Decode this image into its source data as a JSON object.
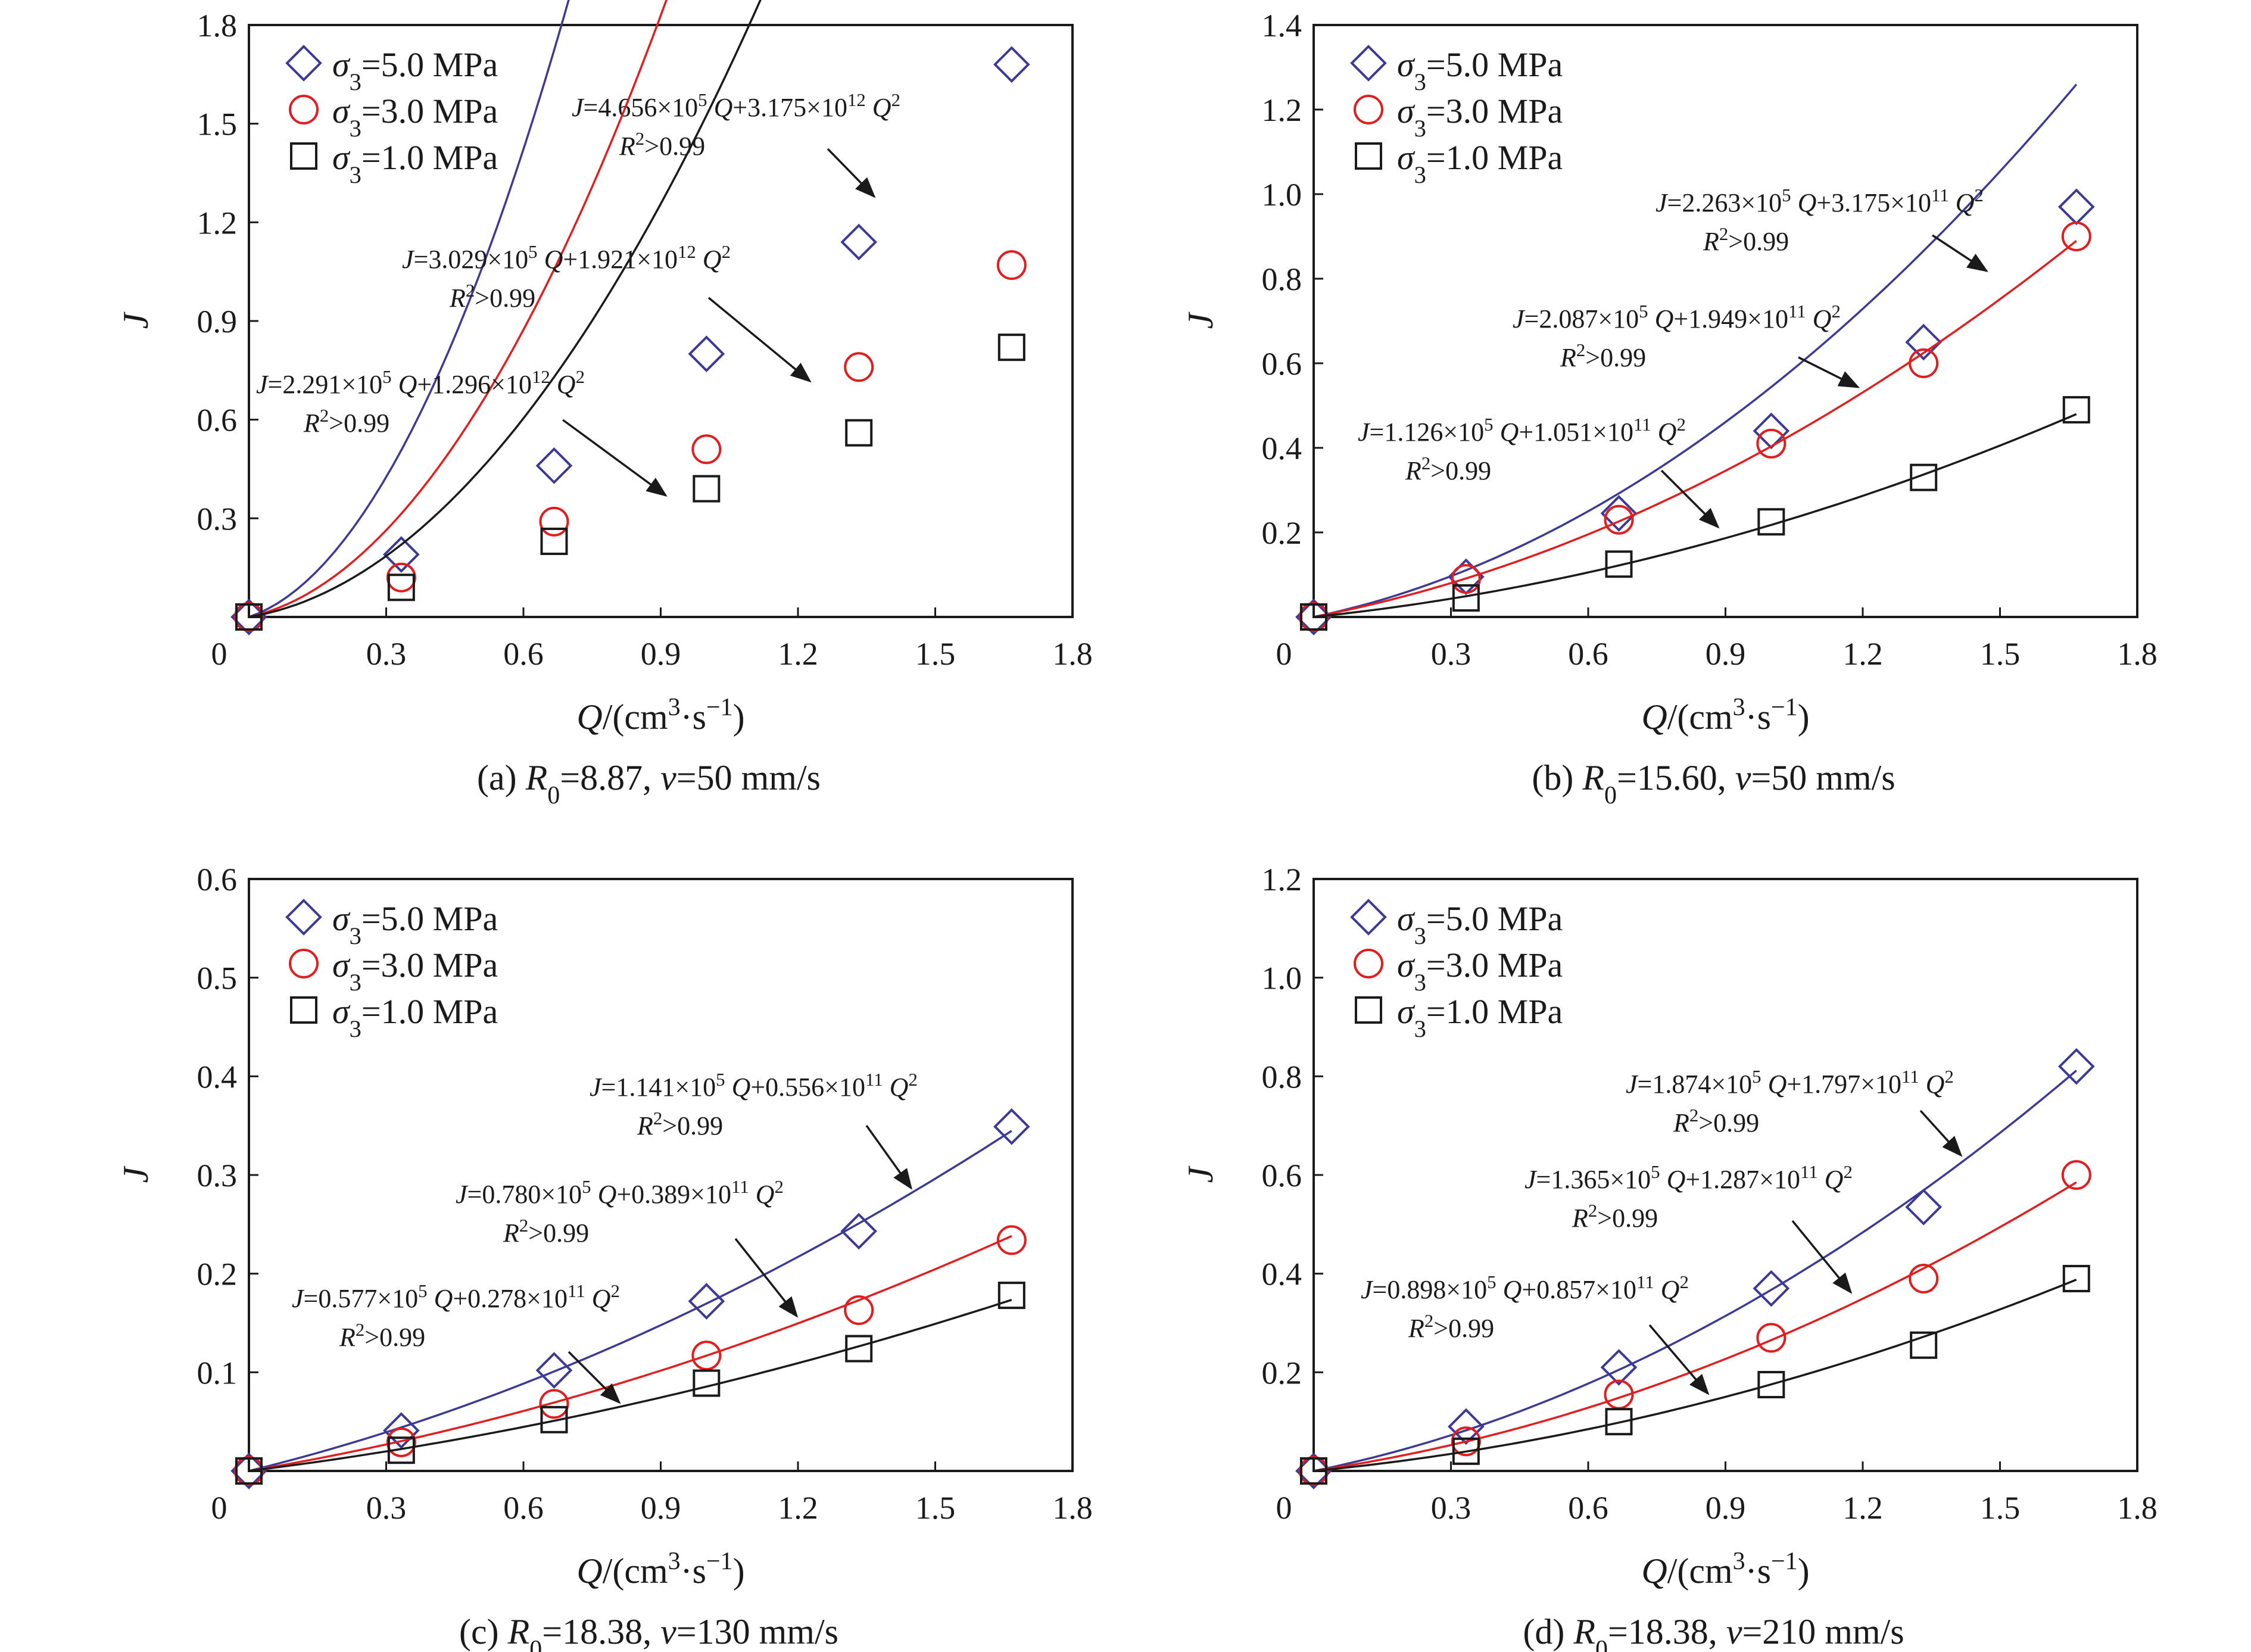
{
  "colors": {
    "s50": "#3d3a97",
    "s30": "#e31d1d",
    "s10": "#1a1a1a",
    "axis": "#1a1a1a"
  },
  "chart_data": [
    {
      "type": "scatter",
      "caption": "(a) R0=8.87, v=50 mm/s",
      "xlabel": "Q/(cm³·s⁻¹)",
      "ylabel": "J",
      "xlim": [
        0,
        1.8
      ],
      "ylim": [
        0,
        1.8
      ],
      "xticks": [
        "0",
        "0.3",
        "0.6",
        "0.9",
        "1.2",
        "1.5",
        "1.8"
      ],
      "yticks": [
        "0.3",
        "0.6",
        "0.9",
        "1.2",
        "1.5",
        "1.8"
      ],
      "legend_position": "top-left",
      "series": [
        {
          "name": "σ3=5.0 MPa",
          "marker": "diamond",
          "x": [
            0,
            0.333,
            0.667,
            1.0,
            1.333,
            1.667
          ],
          "values": [
            0,
            0.19,
            0.46,
            0.8,
            1.14,
            1.68
          ],
          "fit": [
            465600.0,
            3175000000000.0
          ],
          "equation": "J=4.656×10⁵ Q+3.175×10¹² Q²",
          "r2": "R²>0.99"
        },
        {
          "name": "σ3=3.0 MPa",
          "marker": "circle",
          "x": [
            0,
            0.333,
            0.667,
            1.0,
            1.333,
            1.667
          ],
          "values": [
            0,
            0.12,
            0.29,
            0.51,
            0.76,
            1.07
          ],
          "fit": [
            302900.0,
            1921000000000.0
          ],
          "equation": "J=3.029×10⁵ Q+1.921×10¹² Q²",
          "r2": "R²>0.99"
        },
        {
          "name": "σ3=1.0 MPa",
          "marker": "square",
          "x": [
            0,
            0.333,
            0.667,
            1.0,
            1.333,
            1.667
          ],
          "values": [
            0,
            0.09,
            0.23,
            0.39,
            0.56,
            0.82
          ],
          "fit": [
            229100.0,
            1296000000000.0
          ],
          "equation": "J=2.291×10⁵ Q+1.296×10¹² Q²",
          "r2": "R²>0.99"
        }
      ]
    },
    {
      "type": "scatter",
      "caption": "(b) R0=15.60, v=50 mm/s",
      "xlabel": "Q/(cm³·s⁻¹)",
      "ylabel": "J",
      "xlim": [
        0,
        1.8
      ],
      "ylim": [
        0,
        1.4
      ],
      "xticks": [
        "0",
        "0.3",
        "0.6",
        "0.9",
        "1.2",
        "1.5",
        "1.8"
      ],
      "yticks": [
        "0.2",
        "0.4",
        "0.6",
        "0.8",
        "1.0",
        "1.2",
        "1.4"
      ],
      "legend_position": "top-left",
      "series": [
        {
          "name": "σ3=5.0 MPa",
          "marker": "diamond",
          "x": [
            0,
            0.333,
            0.667,
            1.0,
            1.333,
            1.667
          ],
          "values": [
            0,
            0.095,
            0.245,
            0.44,
            0.65,
            0.97
          ],
          "fit": [
            226300.0,
            317500000000.0
          ],
          "equation": "J=2.263×10⁵ Q+3.175×10¹¹ Q²",
          "r2": "R²>0.99"
        },
        {
          "name": "σ3=3.0 MPa",
          "marker": "circle",
          "x": [
            0,
            0.333,
            0.667,
            1.0,
            1.333,
            1.667
          ],
          "values": [
            0,
            0.09,
            0.23,
            0.41,
            0.6,
            0.9
          ],
          "fit": [
            208700.0,
            194900000000.0
          ],
          "equation": "J=2.087×10⁵ Q+1.949×10¹¹ Q²",
          "r2": "R²>0.99"
        },
        {
          "name": "σ3=1.0 MPa",
          "marker": "square",
          "x": [
            0,
            0.333,
            0.667,
            1.0,
            1.333,
            1.667
          ],
          "values": [
            0,
            0.045,
            0.125,
            0.225,
            0.33,
            0.49
          ],
          "fit": [
            112600.0,
            105100000000.0
          ],
          "equation": "J=1.126×10⁵ Q+1.051×10¹¹ Q²",
          "r2": "R²>0.99"
        }
      ]
    },
    {
      "type": "scatter",
      "caption": "(c) R0=18.38, v=130 mm/s",
      "xlabel": "Q/(cm³·s⁻¹)",
      "ylabel": "J",
      "xlim": [
        0,
        1.8
      ],
      "ylim": [
        0,
        0.6
      ],
      "xticks": [
        "0",
        "0.3",
        "0.6",
        "0.9",
        "1.2",
        "1.5",
        "1.8"
      ],
      "yticks": [
        "0.1",
        "0.2",
        "0.3",
        "0.4",
        "0.5",
        "0.6"
      ],
      "legend_position": "top-left",
      "series": [
        {
          "name": "σ3=5.0 MPa",
          "marker": "diamond",
          "x": [
            0,
            0.333,
            0.667,
            1.0,
            1.333,
            1.667
          ],
          "values": [
            0,
            0.041,
            0.102,
            0.172,
            0.243,
            0.349
          ],
          "fit": [
            114100.0,
            55600000000.0
          ],
          "equation": "J=1.141×10⁵ Q+0.556×10¹¹ Q²",
          "r2": "R²>0.99"
        },
        {
          "name": "σ3=3.0 MPa",
          "marker": "circle",
          "x": [
            0,
            0.333,
            0.667,
            1.0,
            1.333,
            1.667
          ],
          "values": [
            0,
            0.029,
            0.068,
            0.117,
            0.163,
            0.234
          ],
          "fit": [
            78000.0,
            38900000000.0
          ],
          "equation": "J=0.780×10⁵ Q+0.389×10¹¹ Q²",
          "r2": "R²>0.99"
        },
        {
          "name": "σ3=1.0 MPa",
          "marker": "square",
          "x": [
            0,
            0.333,
            0.667,
            1.0,
            1.333,
            1.667
          ],
          "values": [
            0,
            0.021,
            0.052,
            0.089,
            0.124,
            0.178
          ],
          "fit": [
            57700.0,
            27800000000.0
          ],
          "equation": "J=0.577×10⁵ Q+0.278×10¹¹ Q²",
          "r2": "R²>0.99"
        }
      ]
    },
    {
      "type": "scatter",
      "caption": "(d) R0=18.38, v=210 mm/s",
      "xlabel": "Q/(cm³·s⁻¹)",
      "ylabel": "J",
      "xlim": [
        0,
        1.8
      ],
      "ylim": [
        0,
        1.2
      ],
      "xticks": [
        "0",
        "0.3",
        "0.6",
        "0.9",
        "1.2",
        "1.5",
        "1.8"
      ],
      "yticks": [
        "0.2",
        "0.4",
        "0.6",
        "0.8",
        "1.0",
        "1.2"
      ],
      "legend_position": "top-left",
      "series": [
        {
          "name": "σ3=5.0 MPa",
          "marker": "diamond",
          "x": [
            0,
            0.333,
            0.667,
            1.0,
            1.333,
            1.667
          ],
          "values": [
            0,
            0.09,
            0.21,
            0.37,
            0.535,
            0.82
          ],
          "fit": [
            187400.0,
            179700000000.0
          ],
          "equation": "J=1.874×10⁵ Q+1.797×10¹¹ Q²",
          "r2": "R²>0.99"
        },
        {
          "name": "σ3=3.0 MPa",
          "marker": "circle",
          "x": [
            0,
            0.333,
            0.667,
            1.0,
            1.333,
            1.667
          ],
          "values": [
            0,
            0.06,
            0.155,
            0.27,
            0.39,
            0.6
          ],
          "fit": [
            136500.0,
            128700000000.0
          ],
          "equation": "J=1.365×10⁵ Q+1.287×10¹¹ Q²",
          "r2": "R²>0.99"
        },
        {
          "name": "σ3=1.0 MPa",
          "marker": "square",
          "x": [
            0,
            0.333,
            0.667,
            1.0,
            1.333,
            1.667
          ],
          "values": [
            0,
            0.04,
            0.1,
            0.175,
            0.255,
            0.39
          ],
          "fit": [
            89800.0,
            85700000000.0
          ],
          "equation": "J=0.898×10⁵ Q+0.857×10¹¹ Q²",
          "r2": "R²>0.99"
        }
      ]
    }
  ]
}
